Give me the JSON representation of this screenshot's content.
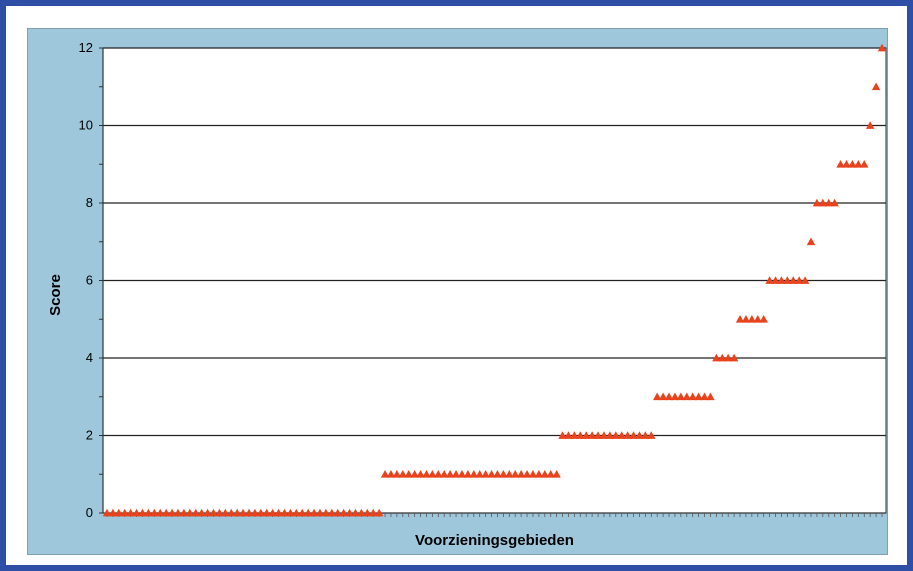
{
  "chart_data": {
    "type": "scatter",
    "title": "",
    "xlabel": "Voorzieningsgebieden",
    "ylabel": "Score",
    "ylim": [
      0,
      12
    ],
    "yticks": [
      0,
      2,
      4,
      6,
      8,
      10,
      12
    ],
    "grid": true,
    "legend": "none",
    "marker": "triangle",
    "series_color": "#e8431c",
    "frame_color": "#2f4fa6",
    "panel_color": "#9fc7dc",
    "groups": [
      {
        "score": 0,
        "count": 47
      },
      {
        "score": 1,
        "count": 30
      },
      {
        "score": 2,
        "count": 16
      },
      {
        "score": 3,
        "count": 10
      },
      {
        "score": 4,
        "count": 4
      },
      {
        "score": 5,
        "count": 5
      },
      {
        "score": 6,
        "count": 7
      },
      {
        "score": 7,
        "count": 1
      },
      {
        "score": 8,
        "count": 4
      },
      {
        "score": 9,
        "count": 5
      },
      {
        "score": 10,
        "count": 1
      },
      {
        "score": 11,
        "count": 1
      },
      {
        "score": 12,
        "count": 1
      }
    ]
  }
}
